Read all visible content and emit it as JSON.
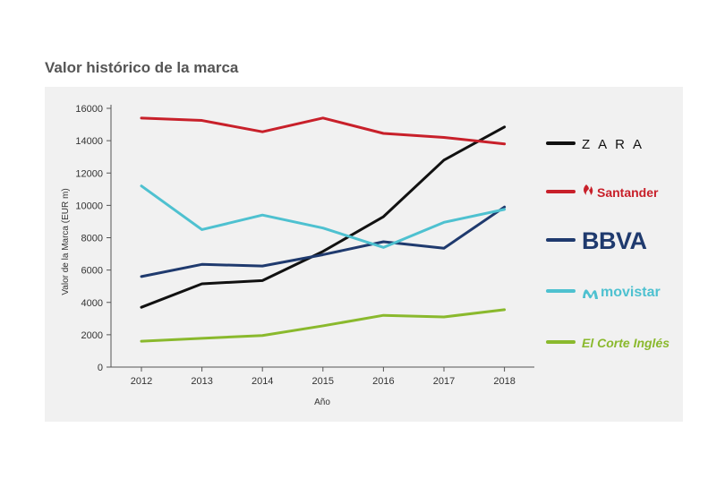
{
  "title": "Valor histórico de la marca",
  "chart_data": {
    "type": "line",
    "x": [
      "2012",
      "2013",
      "2014",
      "2015",
      "2016",
      "2017",
      "2018"
    ],
    "xlabel": "Año",
    "ylabel": "Valor de la Marca (EUR m)",
    "ylim": [
      0,
      16000
    ],
    "yticks": [
      0,
      2000,
      4000,
      6000,
      8000,
      10000,
      12000,
      14000,
      16000
    ],
    "grid": false,
    "legend_position": "right",
    "series": [
      {
        "name": "ZARA",
        "color": "#111111",
        "values": [
          3700,
          5150,
          5350,
          7150,
          9300,
          12800,
          14850
        ]
      },
      {
        "name": "Santander",
        "color": "#c8202a",
        "values": [
          15400,
          15250,
          14550,
          15400,
          14450,
          14200,
          13800
        ]
      },
      {
        "name": "BBVA",
        "color": "#1f3a6e",
        "values": [
          5600,
          6350,
          6250,
          6950,
          7750,
          7350,
          9900
        ]
      },
      {
        "name": "movistar",
        "color": "#4ec1d0",
        "values": [
          11200,
          8500,
          9400,
          8600,
          7400,
          8950,
          9750
        ]
      },
      {
        "name": "El Corte Inglés",
        "color": "#8ab92d",
        "values": [
          1600,
          1780,
          1950,
          2550,
          3200,
          3100,
          3550
        ]
      }
    ]
  },
  "legend": [
    {
      "label": "ZARA",
      "color": "#111111"
    },
    {
      "label": "Santander",
      "color": "#c8202a"
    },
    {
      "label": "BBVA",
      "color": "#1f3a6e"
    },
    {
      "label": "movistar",
      "color": "#4ec1d0"
    },
    {
      "label": "El Corte Inglés",
      "color": "#8ab92d"
    }
  ]
}
